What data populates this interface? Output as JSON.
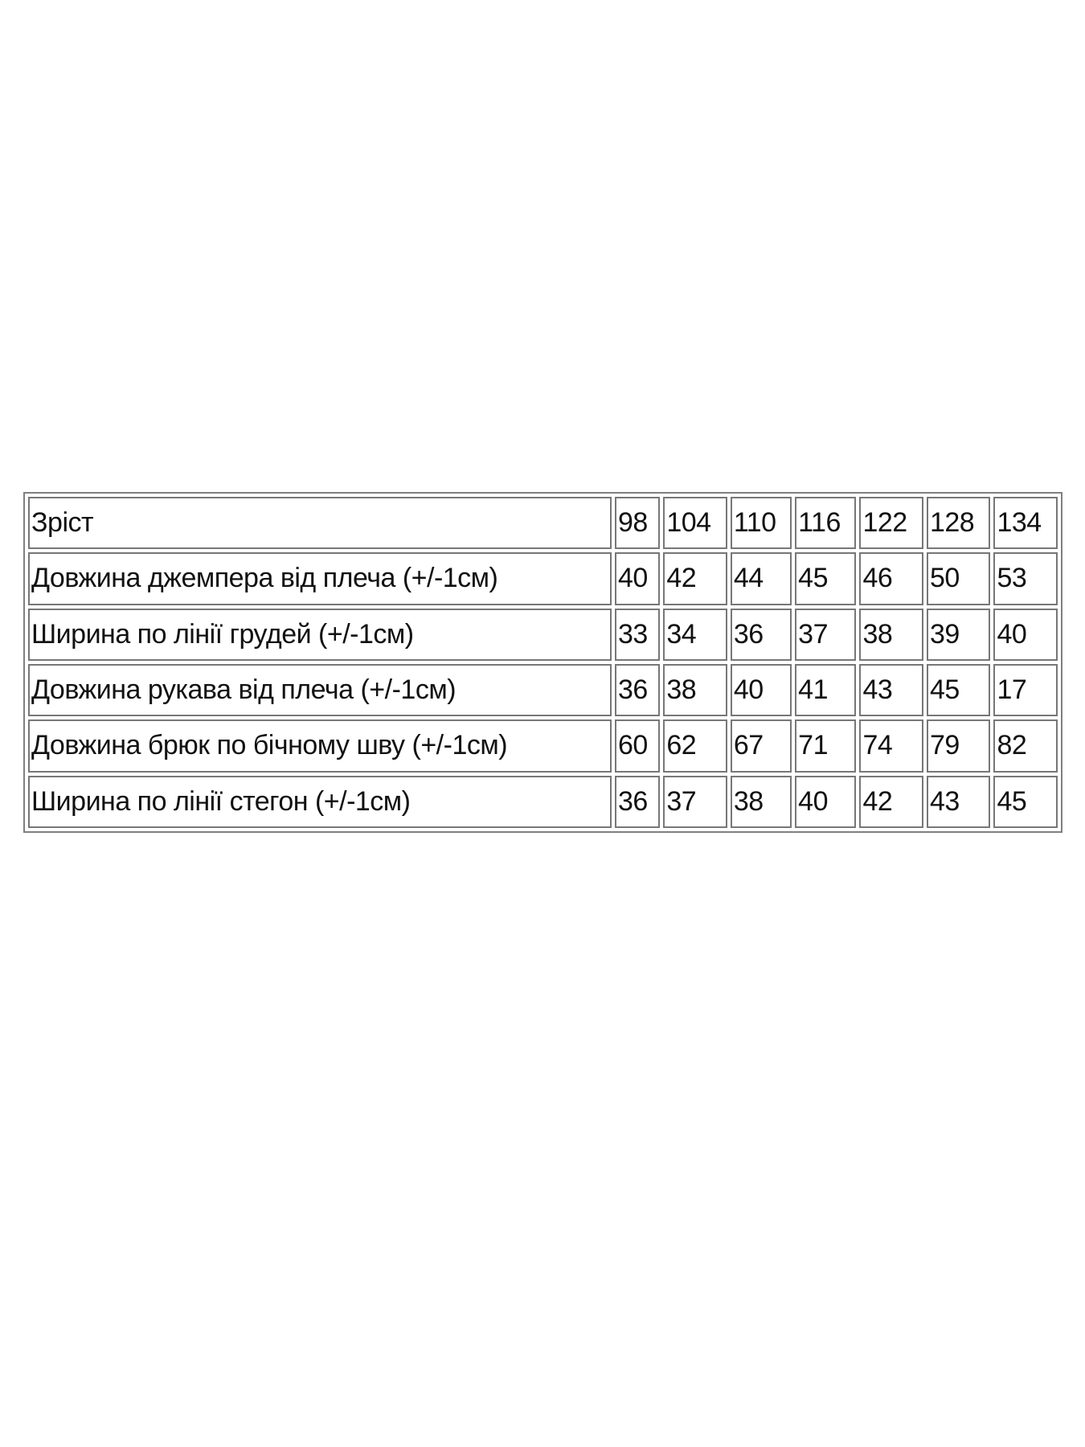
{
  "table": {
    "header": {
      "label": "Зріст",
      "values": [
        "98",
        "104",
        "110",
        "116",
        "122",
        "128",
        "134"
      ]
    },
    "rows": [
      {
        "label": "Довжина джемпера від плеча (+/-1см)",
        "values": [
          "40",
          "42",
          "44",
          "45",
          "46",
          "50",
          "53"
        ]
      },
      {
        "label": "Ширина по лінії грудей (+/-1см)",
        "values": [
          "33",
          "34",
          "36",
          "37",
          "38",
          "39",
          "40"
        ]
      },
      {
        "label": "Довжина рукава від плеча (+/-1см)",
        "values": [
          "36",
          "38",
          "40",
          "41",
          "43",
          "45",
          "17"
        ]
      },
      {
        "label": "Довжина брюк по бічному шву (+/-1см)",
        "values": [
          "60",
          "62",
          "67",
          "71",
          "74",
          "79",
          "82"
        ]
      },
      {
        "label": "Ширина по лінії стегон (+/-1см)",
        "values": [
          "36",
          "37",
          "38",
          "40",
          "42",
          "43",
          "45"
        ]
      }
    ]
  }
}
